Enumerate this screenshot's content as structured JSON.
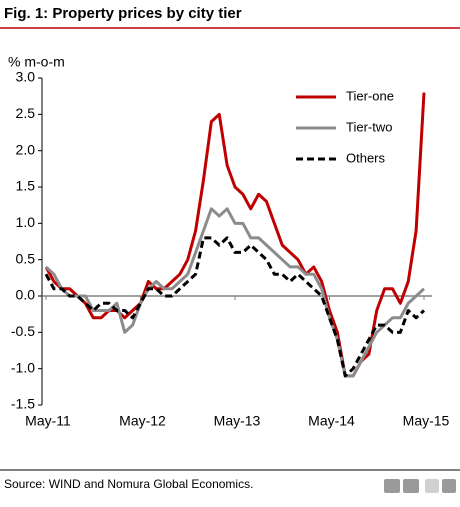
{
  "chart_data": {
    "type": "line",
    "title": "Fig. 1: Property prices by city tier",
    "ylabel": "% m-o-m",
    "source": "Source: WIND and Nomura Global Economics.",
    "categories": [
      "May-11",
      null,
      null,
      null,
      null,
      null,
      null,
      null,
      null,
      null,
      null,
      null,
      "May-12",
      null,
      null,
      null,
      null,
      null,
      null,
      null,
      null,
      null,
      null,
      null,
      "May-13",
      null,
      null,
      null,
      null,
      null,
      null,
      null,
      null,
      null,
      null,
      null,
      "May-14",
      null,
      null,
      null,
      null,
      null,
      null,
      null,
      null,
      null,
      null,
      null,
      "May-15"
    ],
    "series": [
      {
        "name": "Tier-one",
        "color": "#c00000",
        "dashed": false,
        "values": [
          0.4,
          0.2,
          0.1,
          0.1,
          0.0,
          -0.1,
          -0.3,
          -0.3,
          -0.2,
          -0.2,
          -0.3,
          -0.2,
          -0.1,
          0.2,
          0.1,
          0.1,
          0.2,
          0.3,
          0.5,
          0.9,
          1.6,
          2.4,
          2.5,
          1.8,
          1.5,
          1.4,
          1.2,
          1.4,
          1.3,
          1.0,
          0.7,
          0.6,
          0.5,
          0.3,
          0.4,
          0.2,
          -0.2,
          -0.5,
          -1.1,
          -1.1,
          -0.9,
          -0.8,
          -0.2,
          0.1,
          0.1,
          -0.1,
          0.2,
          0.9,
          2.8
        ]
      },
      {
        "name": "Tier-two",
        "color": "#8c8c8c",
        "dashed": false,
        "values": [
          0.4,
          0.3,
          0.1,
          0.0,
          0.0,
          0.0,
          -0.2,
          -0.2,
          -0.2,
          -0.1,
          -0.5,
          -0.4,
          -0.1,
          0.1,
          0.2,
          0.1,
          0.1,
          0.2,
          0.3,
          0.6,
          0.9,
          1.2,
          1.1,
          1.2,
          1.0,
          1.0,
          0.8,
          0.8,
          0.7,
          0.6,
          0.5,
          0.4,
          0.4,
          0.3,
          0.3,
          0.1,
          -0.3,
          -0.6,
          -1.1,
          -1.1,
          -0.9,
          -0.7,
          -0.5,
          -0.4,
          -0.3,
          -0.3,
          -0.1,
          0.0,
          0.1
        ]
      },
      {
        "name": "Others",
        "color": "#000000",
        "dashed": true,
        "values": [
          0.3,
          0.1,
          0.1,
          0.0,
          0.0,
          -0.1,
          -0.2,
          -0.1,
          -0.1,
          -0.2,
          -0.2,
          -0.3,
          -0.1,
          0.1,
          0.1,
          0.0,
          0.0,
          0.1,
          0.2,
          0.3,
          0.8,
          0.8,
          0.7,
          0.8,
          0.6,
          0.6,
          0.7,
          0.6,
          0.5,
          0.3,
          0.3,
          0.2,
          0.3,
          0.2,
          0.1,
          0.0,
          -0.3,
          -0.6,
          -1.1,
          -1.0,
          -0.8,
          -0.6,
          -0.4,
          -0.4,
          -0.5,
          -0.5,
          -0.2,
          -0.3,
          -0.2
        ]
      }
    ],
    "ylim": [
      -1.5,
      3
    ],
    "yticks": [
      -1.5,
      {
        "value": -1,
        "label": "-1.0"
      },
      -0.5,
      {
        "value": 0,
        "label": "0.0"
      },
      0.5,
      {
        "value": 1,
        "label": "1.0"
      },
      1.5,
      {
        "value": 2,
        "label": "2.0"
      },
      2.5,
      {
        "value": 3,
        "label": "3.0"
      }
    ],
    "legend": "upper right"
  }
}
